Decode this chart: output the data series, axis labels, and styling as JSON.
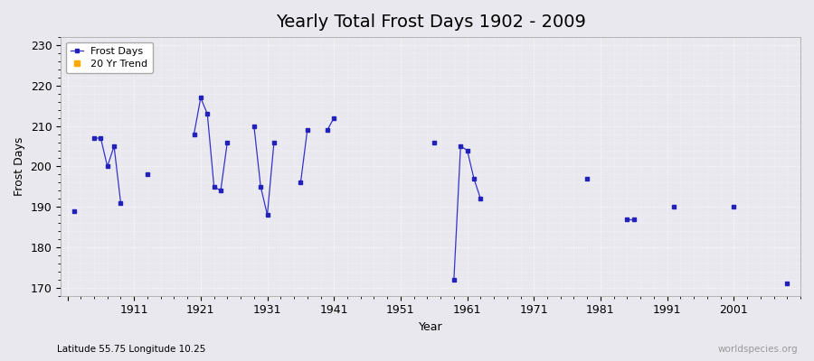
{
  "title": "Yearly Total Frost Days 1902 - 2009",
  "xlabel": "Year",
  "ylabel": "Frost Days",
  "bottom_left_label": "Latitude 55.75 Longitude 10.25",
  "bottom_right_label": "worldspecies.org",
  "xlim": [
    1900,
    2011
  ],
  "ylim": [
    168,
    232
  ],
  "yticks": [
    170,
    180,
    190,
    200,
    210,
    220,
    230
  ],
  "xticks": [
    1901,
    1911,
    1921,
    1931,
    1941,
    1951,
    1961,
    1971,
    1981,
    1991,
    2001
  ],
  "xtick_labels": [
    "",
    "1911",
    "1921",
    "1931",
    "1941",
    "1951",
    "1961",
    "1971",
    "1981",
    "1991",
    "2001"
  ],
  "frost_segments": [
    [
      [
        1902,
        189
      ],
      [
        1903,
        null
      ]
    ],
    [
      [
        1904,
        null
      ],
      [
        1905,
        207
      ],
      [
        1906,
        207
      ],
      [
        1907,
        200
      ],
      [
        1908,
        205
      ],
      [
        1909,
        191
      ],
      [
        1910,
        null
      ]
    ],
    [
      [
        1912,
        null
      ],
      [
        1913,
        198
      ],
      [
        1914,
        null
      ]
    ],
    [
      [
        1919,
        null
      ],
      [
        1920,
        208
      ],
      [
        1921,
        217
      ],
      [
        1922,
        213
      ],
      [
        1923,
        195
      ],
      [
        1924,
        194
      ],
      [
        1925,
        206
      ],
      [
        1926,
        null
      ]
    ],
    [
      [
        1928,
        null
      ],
      [
        1929,
        210
      ],
      [
        1930,
        195
      ],
      [
        1931,
        188
      ],
      [
        1932,
        206
      ],
      [
        1933,
        null
      ]
    ],
    [
      [
        1935,
        null
      ],
      [
        1936,
        196
      ],
      [
        1937,
        209
      ],
      [
        1938,
        null
      ]
    ],
    [
      [
        1939,
        null
      ],
      [
        1940,
        209
      ],
      [
        1941,
        212
      ],
      [
        1942,
        null
      ]
    ],
    [
      [
        1955,
        null
      ],
      [
        1956,
        206
      ],
      [
        1957,
        null
      ]
    ],
    [
      [
        1958,
        null
      ],
      [
        1959,
        172
      ],
      [
        1960,
        205
      ],
      [
        1961,
        204
      ],
      [
        1962,
        197
      ],
      [
        1963,
        192
      ],
      [
        1964,
        null
      ]
    ],
    [
      [
        1978,
        null
      ],
      [
        1979,
        197
      ],
      [
        1980,
        null
      ]
    ],
    [
      [
        1984,
        null
      ],
      [
        1985,
        187
      ],
      [
        1986,
        187
      ],
      [
        1987,
        null
      ]
    ],
    [
      [
        1991,
        null
      ],
      [
        1992,
        190
      ],
      [
        1993,
        null
      ]
    ],
    [
      [
        2000,
        null
      ],
      [
        2001,
        190
      ],
      [
        2002,
        null
      ]
    ],
    [
      [
        2008,
        null
      ],
      [
        2009,
        171
      ],
      [
        2010,
        null
      ]
    ]
  ],
  "line_color": "#3333cc",
  "marker_color": "#2222bb",
  "trend_color": "#ffaa00",
  "background_color": "#e8e8ee",
  "grid_color": "#ffffff",
  "title_fontsize": 14,
  "axis_fontsize": 9,
  "tick_fontsize": 9
}
